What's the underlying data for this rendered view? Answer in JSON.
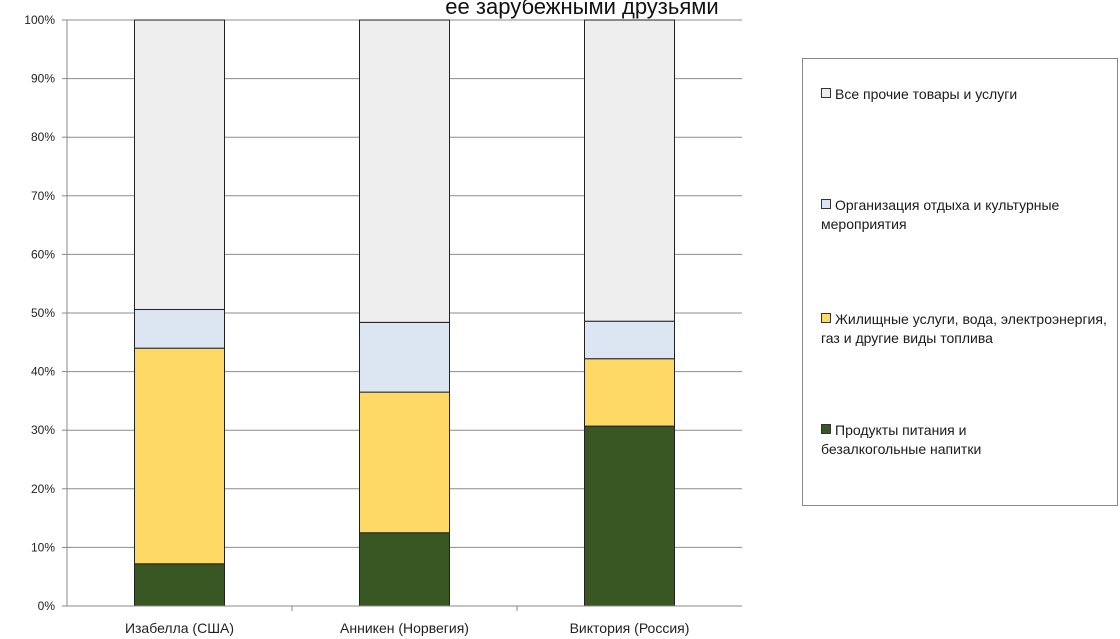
{
  "chart_data": {
    "type": "bar",
    "stacked": true,
    "title": "ее зарубежными друзьями",
    "categories": [
      "Изабелла (США)",
      "Анникен (Норвегия)",
      "Виктория (Россия)"
    ],
    "yticks": [
      "0%",
      "10%",
      "20%",
      "30%",
      "40%",
      "50%",
      "60%",
      "70%",
      "80%",
      "90%",
      "100%"
    ],
    "ylim": [
      0,
      100
    ],
    "legend_position": "right",
    "series": [
      {
        "name": "Продукты питания и безалкогольные напитки",
        "color": "#385723",
        "values": [
          7.2,
          12.5,
          30.7
        ]
      },
      {
        "name": "Жилищные услуги, вода, электроэнергия, газ и другие виды топлива",
        "color": "#FFD966",
        "values": [
          36.8,
          24.0,
          11.5
        ]
      },
      {
        "name": "Организация отдыха и культурные мероприятия",
        "color": "#DCE6F2",
        "values": [
          6.6,
          11.9,
          6.4
        ]
      },
      {
        "name": "Все прочие товары и услуги",
        "color": "#EEEEEE",
        "values": [
          49.4,
          51.6,
          51.4
        ]
      }
    ]
  }
}
